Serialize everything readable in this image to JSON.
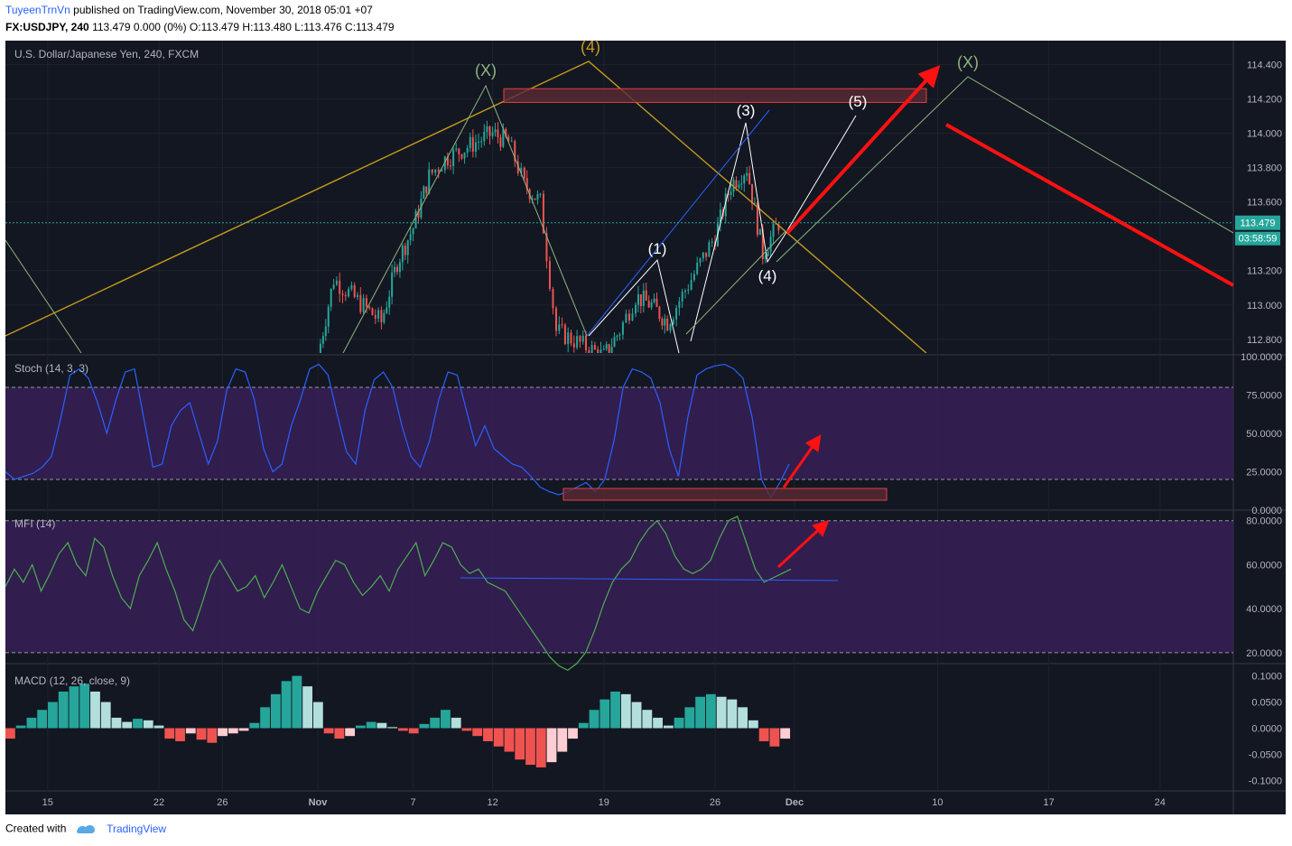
{
  "header": {
    "user": "TuyeenTrnVn",
    "published": "published on TradingView.com, November 30, 2018 05:01 +07",
    "symbol": "FX:USDJPY, 240",
    "ohlc": "113.479 0.000 (0%) O:113.479 H:113.480 L:113.476 C:113.479"
  },
  "footer": {
    "created": "Created with",
    "brand": "TradingView"
  },
  "colors": {
    "background": "#131722",
    "bull": "#26a69a",
    "bear": "#ef5350",
    "stoch": "#2962ff",
    "mfi": "#4caf50",
    "hist_up": "#26a69a",
    "hist_up_light": "#b2dfdb",
    "hist_down": "#ef5350",
    "hist_down_light": "#ffcdd2",
    "oscillator_band": "#3a1f5a",
    "arrow": "#ff1111",
    "wave_orange": "#c49a1c",
    "wave_green": "#8db67e"
  },
  "chart_data": [
    {
      "type": "candlestick",
      "title": "U.S. Dollar/Japanese Yen, 240, FXCM",
      "last_price": "113.479",
      "countdown": "03:58:59",
      "x_ticks": [
        "15",
        "22",
        "26",
        "Nov",
        "7",
        "12",
        "19",
        "26",
        "Dec",
        "10",
        "17",
        "24"
      ],
      "y_ticks": [
        "114.400",
        "114.200",
        "114.000",
        "113.800",
        "113.600",
        "113.200",
        "113.000",
        "112.800"
      ],
      "ylim": [
        112.72,
        114.54
      ],
      "close_path": [
        {
          "x": "2018-11-01",
          "y": 112.7
        },
        {
          "x": "2018-11-02",
          "y": 113.15
        },
        {
          "x": "2018-11-05",
          "y": 112.9
        },
        {
          "x": "2018-11-06",
          "y": 113.25
        },
        {
          "x": "2018-11-07",
          "y": 113.45
        },
        {
          "x": "2018-11-08",
          "y": 113.75
        },
        {
          "x": "2018-11-09",
          "y": 113.85
        },
        {
          "x": "2018-11-12",
          "y": 114.0
        },
        {
          "x": "2018-11-13",
          "y": 113.95
        },
        {
          "x": "2018-11-14",
          "y": 113.7
        },
        {
          "x": "2018-11-15",
          "y": 113.6
        },
        {
          "x": "2018-11-16",
          "y": 112.85
        },
        {
          "x": "2018-11-19",
          "y": 112.7
        },
        {
          "x": "2018-11-20",
          "y": 112.85
        },
        {
          "x": "2018-11-21",
          "y": 113.05
        },
        {
          "x": "2018-11-22",
          "y": 113.0
        },
        {
          "x": "2018-11-23",
          "y": 112.9
        },
        {
          "x": "2018-11-26",
          "y": 113.4
        },
        {
          "x": "2018-11-27",
          "y": 113.7
        },
        {
          "x": "2018-11-28",
          "y": 113.8
        },
        {
          "x": "2018-11-29",
          "y": 113.3
        },
        {
          "x": "2018-11-30",
          "y": 113.48
        }
      ],
      "wave_labels": [
        "(X)",
        "(4)",
        "(3)",
        "(5)",
        "(1)",
        "(4)",
        "(X)"
      ],
      "resistance_zone": [
        114.18,
        114.26
      ]
    },
    {
      "type": "line",
      "title": "Stoch (14, 3, 3)",
      "y_ticks": [
        "100.0000",
        "75.0000",
        "50.0000",
        "25.0000",
        "0.0000"
      ],
      "ylim": [
        0,
        100
      ],
      "bands": [
        20,
        80
      ],
      "values": [
        25,
        20,
        22,
        24,
        28,
        35,
        60,
        88,
        92,
        86,
        70,
        50,
        72,
        90,
        92,
        60,
        28,
        30,
        55,
        65,
        70,
        50,
        30,
        45,
        78,
        92,
        90,
        72,
        40,
        25,
        30,
        55,
        72,
        92,
        95,
        88,
        62,
        38,
        30,
        65,
        85,
        90,
        80,
        55,
        35,
        28,
        45,
        72,
        90,
        88,
        65,
        42,
        55,
        40,
        35,
        30,
        28,
        22,
        15,
        12,
        10,
        12,
        15,
        18,
        12,
        20,
        45,
        80,
        92,
        90,
        86,
        70,
        40,
        22,
        60,
        88,
        92,
        94,
        95,
        92,
        86,
        60,
        20,
        8,
        18,
        30
      ]
    },
    {
      "type": "line",
      "title": "MFI (14)",
      "y_ticks": [
        "80.0000",
        "60.0000",
        "40.0000",
        "20.0000"
      ],
      "ylim": [
        15,
        84
      ],
      "bands": [
        20,
        80
      ],
      "values": [
        50,
        58,
        52,
        60,
        48,
        56,
        65,
        70,
        60,
        55,
        72,
        68,
        55,
        45,
        40,
        55,
        62,
        70,
        58,
        48,
        35,
        30,
        42,
        55,
        62,
        55,
        48,
        50,
        55,
        45,
        52,
        60,
        50,
        40,
        38,
        48,
        55,
        62,
        60,
        52,
        46,
        50,
        55,
        48,
        58,
        64,
        70,
        55,
        62,
        70,
        68,
        60,
        56,
        58,
        52,
        50,
        48,
        42,
        36,
        30,
        24,
        18,
        14,
        12,
        15,
        20,
        30,
        42,
        52,
        58,
        62,
        70,
        76,
        80,
        74,
        64,
        58,
        56,
        58,
        62,
        72,
        80,
        82,
        70,
        58,
        52,
        54,
        56,
        58
      ]
    },
    {
      "type": "bar",
      "title": "MACD (12, 26, close, 9)",
      "y_ticks": [
        "0.1000",
        "0.0500",
        "0.0000",
        "-0.0500",
        "-0.1000"
      ],
      "ylim": [
        -0.12,
        0.12
      ],
      "values": [
        -0.02,
        0.005,
        0.02,
        0.035,
        0.05,
        0.07,
        0.08,
        0.085,
        0.07,
        0.05,
        0.02,
        0.012,
        0.018,
        0.015,
        0.005,
        -0.02,
        -0.025,
        -0.01,
        -0.022,
        -0.028,
        -0.015,
        -0.01,
        -0.005,
        0.01,
        0.04,
        0.065,
        0.09,
        0.1,
        0.08,
        0.05,
        -0.01,
        -0.02,
        -0.015,
        0.005,
        0.012,
        0.01,
        0.002,
        -0.005,
        -0.01,
        0.008,
        0.02,
        0.035,
        0.02,
        -0.005,
        -0.015,
        -0.025,
        -0.035,
        -0.045,
        -0.06,
        -0.07,
        -0.075,
        -0.065,
        -0.045,
        -0.02,
        0.01,
        0.035,
        0.055,
        0.07,
        0.065,
        0.05,
        0.035,
        0.02,
        0.005,
        0.02,
        0.04,
        0.06,
        0.065,
        0.06,
        0.055,
        0.04,
        0.015,
        -0.025,
        -0.035,
        -0.02
      ]
    }
  ]
}
